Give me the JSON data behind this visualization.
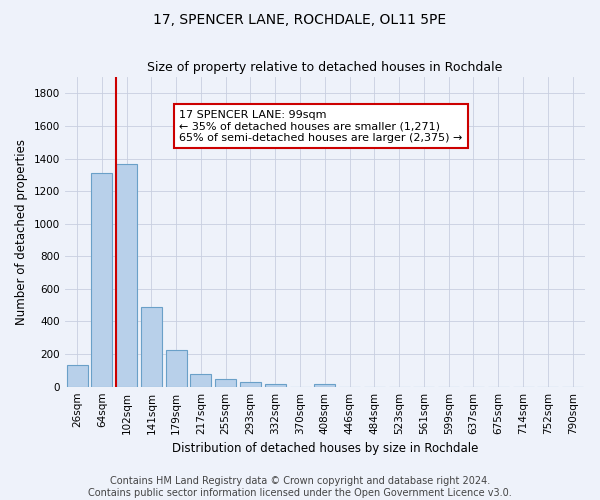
{
  "title": "17, SPENCER LANE, ROCHDALE, OL11 5PE",
  "subtitle": "Size of property relative to detached houses in Rochdale",
  "xlabel": "Distribution of detached houses by size in Rochdale",
  "ylabel": "Number of detached properties",
  "bar_labels": [
    "26sqm",
    "64sqm",
    "102sqm",
    "141sqm",
    "179sqm",
    "217sqm",
    "255sqm",
    "293sqm",
    "332sqm",
    "370sqm",
    "408sqm",
    "446sqm",
    "484sqm",
    "523sqm",
    "561sqm",
    "599sqm",
    "637sqm",
    "675sqm",
    "714sqm",
    "752sqm",
    "790sqm"
  ],
  "bar_values": [
    135,
    1310,
    1365,
    490,
    225,
    75,
    45,
    28,
    15,
    0,
    18,
    0,
    0,
    0,
    0,
    0,
    0,
    0,
    0,
    0,
    0
  ],
  "bar_color": "#b8d0ea",
  "bar_edge_color": "#6aa0c8",
  "highlight_bar_index": 2,
  "highlight_line_color": "#cc0000",
  "annotation_line1": "17 SPENCER LANE: 99sqm",
  "annotation_line2": "← 35% of detached houses are smaller (1,271)",
  "annotation_line3": "65% of semi-detached houses are larger (2,375) →",
  "annotation_box_color": "white",
  "annotation_box_edge_color": "#cc0000",
  "ylim": [
    0,
    1900
  ],
  "yticks": [
    0,
    200,
    400,
    600,
    800,
    1000,
    1200,
    1400,
    1600,
    1800
  ],
  "footer_line1": "Contains HM Land Registry data © Crown copyright and database right 2024.",
  "footer_line2": "Contains public sector information licensed under the Open Government Licence v3.0.",
  "bg_color": "#eef2fa",
  "grid_color": "#c8cfe0",
  "title_fontsize": 10,
  "subtitle_fontsize": 9,
  "axis_label_fontsize": 8.5,
  "tick_fontsize": 7.5,
  "annotation_fontsize": 8,
  "footer_fontsize": 7
}
